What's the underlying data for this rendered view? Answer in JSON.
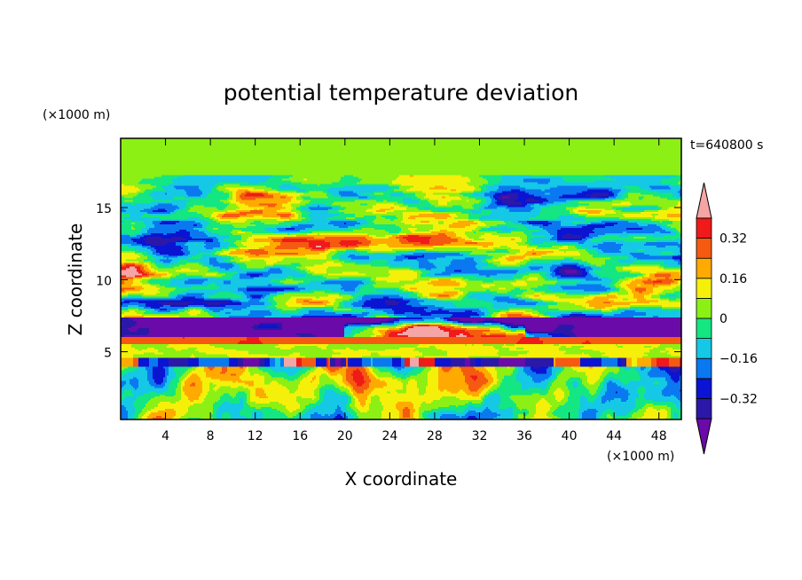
{
  "chart_data": {
    "type": "heatmap",
    "title": "potential temperature deviation",
    "xlabel": "X coordinate",
    "ylabel": "Z coordinate",
    "x_unit": "(×1000 m)",
    "z_unit": "(×1000 m)",
    "time_label": "t=640800 s",
    "xlim": [
      0,
      50
    ],
    "zlim": [
      0.3,
      19.8
    ],
    "x_ticks": [
      "4",
      "8",
      "12",
      "16",
      "20",
      "24",
      "28",
      "32",
      "36",
      "40",
      "44",
      "48"
    ],
    "x_tick_values": [
      4,
      8,
      12,
      16,
      20,
      24,
      28,
      32,
      36,
      40,
      44,
      48
    ],
    "z_ticks": [
      "5",
      "10",
      "15"
    ],
    "z_tick_values": [
      5,
      10,
      15
    ],
    "colorbar": {
      "levels": [
        -0.4,
        -0.32,
        -0.24,
        -0.16,
        -0.08,
        0,
        0.08,
        0.16,
        0.24,
        0.32,
        0.4
      ],
      "labels": [
        "0.32",
        "0.16",
        "0",
        "−0.16",
        "−0.32"
      ],
      "label_values": [
        0.32,
        0.16,
        0,
        -0.16,
        -0.32
      ],
      "colors": [
        "#6a0aa8",
        "#2c18a8",
        "#0a14d2",
        "#0a78f0",
        "#14c8e6",
        "#14e682",
        "#8cf014",
        "#f5f00a",
        "#ffaa00",
        "#f55a10",
        "#f01a1a",
        "#f5a5a5"
      ]
    }
  }
}
